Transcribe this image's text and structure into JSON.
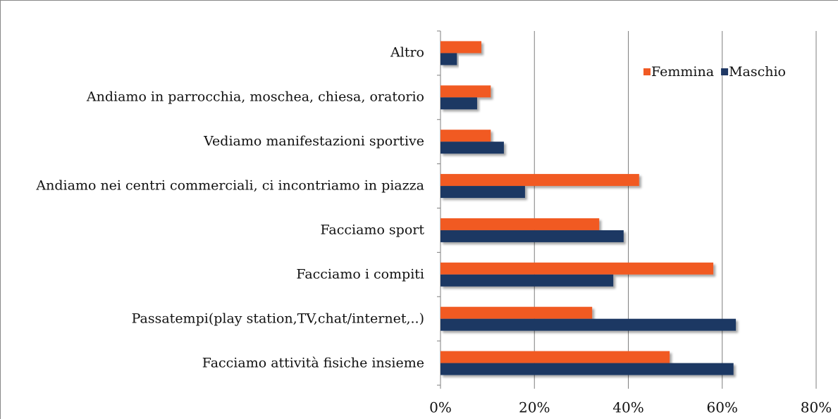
{
  "chart_data": {
    "type": "hbar",
    "categories": [
      "Altro",
      "Andiamo in parrocchia, moschea, chiesa, oratorio",
      "Vediamo manifestazioni sportive",
      "Andiamo nei centri commerciali, ci incontriamo in piazza",
      "Facciamo sport",
      "Facciamo i compiti",
      "Passatempi(play station,TV,chat/internet,..)",
      "Facciamo attività fisiche insieme"
    ],
    "series": [
      {
        "name": "Femmina",
        "color": "#f15a24",
        "values": [
          8.7,
          10.7,
          10.7,
          42.3,
          33.8,
          58.1,
          32.3,
          48.8
        ]
      },
      {
        "name": "Maschio",
        "color": "#1f3864",
        "values": [
          3.5,
          7.8,
          13.5,
          18,
          39,
          36.8,
          62.9,
          62.4
        ]
      }
    ],
    "xlim": [
      0,
      80
    ],
    "xticks": [
      {
        "value": 0,
        "label": "0%"
      },
      {
        "value": 20,
        "label": "20%"
      },
      {
        "value": 40,
        "label": "40%"
      },
      {
        "value": 60,
        "label": "60%"
      },
      {
        "value": 80,
        "label": "80%"
      }
    ],
    "grid": true,
    "legend": "top-right"
  }
}
